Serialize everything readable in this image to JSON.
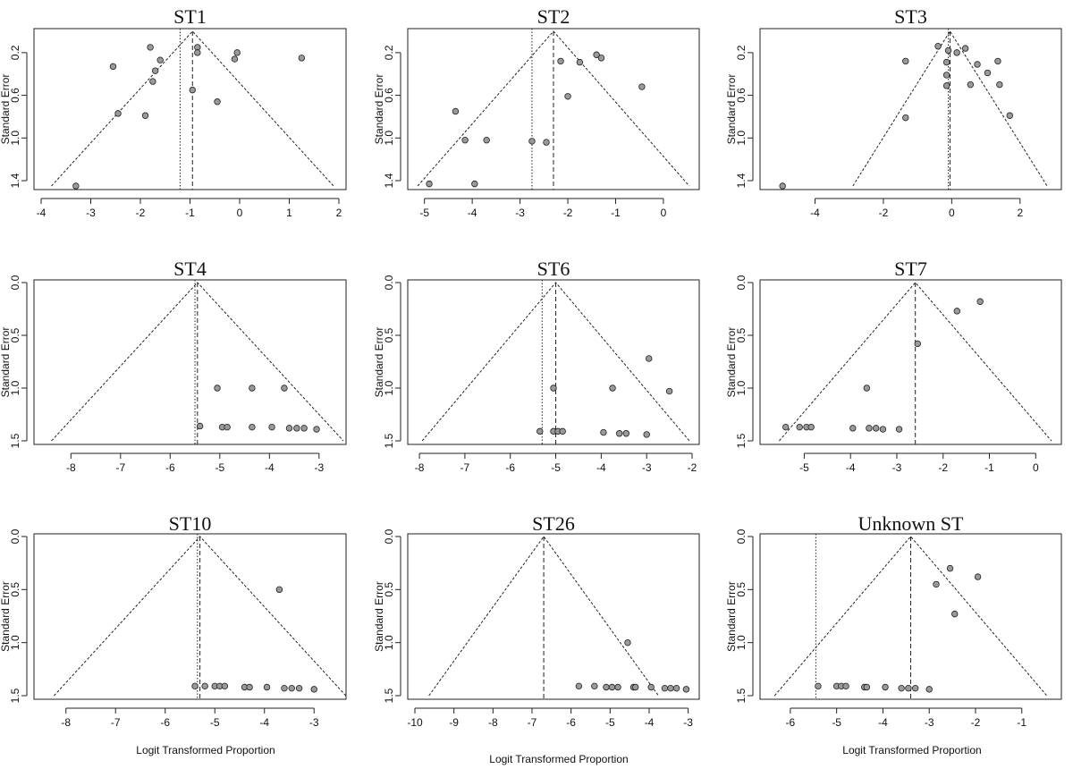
{
  "xlabel": "Logit Transformed Proportion",
  "ylabel": "Standard Error",
  "chart_data": [
    {
      "type": "scatter",
      "title": "ST1",
      "xlabel": "",
      "ylabel": "Standard Error",
      "xlim": [
        -4,
        2
      ],
      "ylim": [
        0.0,
        1.45
      ],
      "y_reversed": true,
      "x_ticks": [
        -4,
        -3,
        -2,
        -1,
        0,
        1,
        2
      ],
      "y_ticks": [
        0.2,
        0.6,
        1.0,
        1.4
      ],
      "y_tick_labels": [
        "0.2",
        "0.6",
        "1.0",
        "1.4"
      ],
      "funnel_center": -0.95,
      "adjusted_estimate": -1.2,
      "points": [
        {
          "x": -1.8,
          "y": 0.15
        },
        {
          "x": -0.85,
          "y": 0.15
        },
        {
          "x": -0.85,
          "y": 0.2
        },
        {
          "x": -0.05,
          "y": 0.2
        },
        {
          "x": -0.1,
          "y": 0.26
        },
        {
          "x": 1.25,
          "y": 0.25
        },
        {
          "x": -1.6,
          "y": 0.27
        },
        {
          "x": -2.55,
          "y": 0.33
        },
        {
          "x": -1.7,
          "y": 0.37
        },
        {
          "x": -1.75,
          "y": 0.47
        },
        {
          "x": -0.95,
          "y": 0.55
        },
        {
          "x": -0.45,
          "y": 0.66
        },
        {
          "x": -2.45,
          "y": 0.77
        },
        {
          "x": -1.9,
          "y": 0.79
        },
        {
          "x": -3.3,
          "y": 1.45
        }
      ]
    },
    {
      "type": "scatter",
      "title": "ST2",
      "xlabel": "",
      "ylabel": "Standard Error",
      "xlim": [
        -5.2,
        0.6
      ],
      "ylim": [
        0.0,
        1.45
      ],
      "y_reversed": true,
      "x_ticks": [
        -5,
        -4,
        -3,
        -2,
        -1,
        0
      ],
      "y_ticks": [
        0.2,
        0.6,
        1.0,
        1.4
      ],
      "y_tick_labels": [
        "0.2",
        "0.6",
        "1.0",
        "1.4"
      ],
      "funnel_center": -2.3,
      "adjusted_estimate": -2.75,
      "points": [
        {
          "x": -1.4,
          "y": 0.22
        },
        {
          "x": -1.3,
          "y": 0.25
        },
        {
          "x": -2.15,
          "y": 0.28
        },
        {
          "x": -1.75,
          "y": 0.29
        },
        {
          "x": -0.45,
          "y": 0.52
        },
        {
          "x": -2.0,
          "y": 0.61
        },
        {
          "x": -4.35,
          "y": 0.75
        },
        {
          "x": -3.7,
          "y": 1.02
        },
        {
          "x": -4.15,
          "y": 1.02
        },
        {
          "x": -2.75,
          "y": 1.03
        },
        {
          "x": -2.45,
          "y": 1.04
        },
        {
          "x": -4.9,
          "y": 1.43
        },
        {
          "x": -3.95,
          "y": 1.43
        }
      ]
    },
    {
      "type": "scatter",
      "title": "ST3",
      "xlabel": "",
      "ylabel": "Standard Error",
      "xlim": [
        -5.4,
        3.0
      ],
      "ylim": [
        0.0,
        1.45
      ],
      "y_reversed": true,
      "x_ticks": [
        -4,
        -2,
        0,
        2
      ],
      "y_ticks": [
        0.2,
        0.6,
        1.0,
        1.4
      ],
      "y_tick_labels": [
        "0.2",
        "0.6",
        "1.0",
        "1.4"
      ],
      "funnel_center": -0.05,
      "adjusted_estimate": -0.1,
      "points": [
        {
          "x": -0.4,
          "y": 0.14
        },
        {
          "x": 0.4,
          "y": 0.16
        },
        {
          "x": -0.1,
          "y": 0.18
        },
        {
          "x": 0.15,
          "y": 0.2
        },
        {
          "x": -1.35,
          "y": 0.28
        },
        {
          "x": -0.15,
          "y": 0.29
        },
        {
          "x": 0.75,
          "y": 0.31
        },
        {
          "x": 1.35,
          "y": 0.28
        },
        {
          "x": -0.15,
          "y": 0.41
        },
        {
          "x": 1.05,
          "y": 0.39
        },
        {
          "x": -0.15,
          "y": 0.51
        },
        {
          "x": 0.55,
          "y": 0.5
        },
        {
          "x": 1.4,
          "y": 0.5
        },
        {
          "x": -1.35,
          "y": 0.81
        },
        {
          "x": 1.7,
          "y": 0.79
        },
        {
          "x": -4.95,
          "y": 1.45
        }
      ]
    },
    {
      "type": "scatter",
      "title": "ST4",
      "xlabel": "",
      "ylabel": "Standard Error",
      "xlim": [
        -8.6,
        -2.6
      ],
      "ylim": [
        0.0,
        1.5
      ],
      "y_reversed": true,
      "x_ticks": [
        -8,
        -7,
        -6,
        -5,
        -4,
        -3
      ],
      "y_ticks": [
        0.0,
        0.5,
        1.0,
        1.5
      ],
      "y_tick_labels": [
        "0.0",
        "0.5",
        "1.0",
        "1.5"
      ],
      "funnel_center": -5.45,
      "adjusted_estimate": -5.5,
      "points": [
        {
          "x": -5.05,
          "y": 1.0
        },
        {
          "x": -4.35,
          "y": 1.0
        },
        {
          "x": -3.7,
          "y": 1.0
        },
        {
          "x": -5.4,
          "y": 1.36
        },
        {
          "x": -4.95,
          "y": 1.37
        },
        {
          "x": -4.85,
          "y": 1.37
        },
        {
          "x": -4.35,
          "y": 1.37
        },
        {
          "x": -3.95,
          "y": 1.37
        },
        {
          "x": -3.6,
          "y": 1.38
        },
        {
          "x": -3.45,
          "y": 1.38
        },
        {
          "x": -3.3,
          "y": 1.38
        },
        {
          "x": -3.05,
          "y": 1.39
        }
      ]
    },
    {
      "type": "scatter",
      "title": "ST6",
      "xlabel": "",
      "ylabel": "Standard Error",
      "xlim": [
        -8.1,
        -2.0
      ],
      "ylim": [
        0.0,
        1.5
      ],
      "y_reversed": true,
      "x_ticks": [
        -8,
        -7,
        -6,
        -5,
        -4,
        -3,
        -2
      ],
      "y_ticks": [
        0.0,
        0.5,
        1.0,
        1.5
      ],
      "y_tick_labels": [
        "0.0",
        "0.5",
        "1.0",
        "1.5"
      ],
      "funnel_center": -5.0,
      "adjusted_estimate": -5.3,
      "points": [
        {
          "x": -2.95,
          "y": 0.72
        },
        {
          "x": -5.05,
          "y": 1.0
        },
        {
          "x": -3.75,
          "y": 1.0
        },
        {
          "x": -2.5,
          "y": 1.03
        },
        {
          "x": -5.35,
          "y": 1.41
        },
        {
          "x": -5.05,
          "y": 1.41
        },
        {
          "x": -4.95,
          "y": 1.41
        },
        {
          "x": -4.85,
          "y": 1.41
        },
        {
          "x": -3.95,
          "y": 1.42
        },
        {
          "x": -3.6,
          "y": 1.43
        },
        {
          "x": -3.45,
          "y": 1.43
        },
        {
          "x": -3.0,
          "y": 1.44
        }
      ]
    },
    {
      "type": "scatter",
      "title": "ST7",
      "xlabel": "",
      "ylabel": "Standard Error",
      "xlim": [
        -5.8,
        0.4
      ],
      "ylim": [
        0.0,
        1.5
      ],
      "y_reversed": true,
      "x_ticks": [
        -5,
        -4,
        -3,
        -2,
        -1,
        0
      ],
      "y_ticks": [
        0.0,
        0.5,
        1.0,
        1.5
      ],
      "y_tick_labels": [
        "0.0",
        "0.5",
        "1.0",
        "1.5"
      ],
      "funnel_center": -2.6,
      "adjusted_estimate": -2.6,
      "points": [
        {
          "x": -1.2,
          "y": 0.18
        },
        {
          "x": -1.7,
          "y": 0.27
        },
        {
          "x": -2.55,
          "y": 0.58
        },
        {
          "x": -3.65,
          "y": 1.0
        },
        {
          "x": -5.4,
          "y": 1.37
        },
        {
          "x": -5.1,
          "y": 1.37
        },
        {
          "x": -4.95,
          "y": 1.37
        },
        {
          "x": -4.85,
          "y": 1.37
        },
        {
          "x": -3.95,
          "y": 1.38
        },
        {
          "x": -3.6,
          "y": 1.38
        },
        {
          "x": -3.45,
          "y": 1.38
        },
        {
          "x": -3.3,
          "y": 1.39
        },
        {
          "x": -2.95,
          "y": 1.39
        }
      ]
    },
    {
      "type": "scatter",
      "title": "ST10",
      "xlabel": "",
      "ylabel": "Standard Error",
      "xlim": [
        -8.5,
        -2.5
      ],
      "ylim": [
        0.0,
        1.5
      ],
      "y_reversed": true,
      "x_ticks": [
        -8,
        -7,
        -6,
        -5,
        -4,
        -3
      ],
      "y_ticks": [
        0.0,
        0.5,
        1.0,
        1.5
      ],
      "y_tick_labels": [
        "0.0",
        "0.5",
        "1.0",
        "1.5"
      ],
      "funnel_center": -5.3,
      "adjusted_estimate": -5.35,
      "points": [
        {
          "x": -3.7,
          "y": 0.5
        },
        {
          "x": -5.4,
          "y": 1.41
        },
        {
          "x": -5.2,
          "y": 1.41
        },
        {
          "x": -5.0,
          "y": 1.41
        },
        {
          "x": -4.9,
          "y": 1.41
        },
        {
          "x": -4.8,
          "y": 1.41
        },
        {
          "x": -4.4,
          "y": 1.42
        },
        {
          "x": -4.3,
          "y": 1.42
        },
        {
          "x": -3.95,
          "y": 1.42
        },
        {
          "x": -3.6,
          "y": 1.43
        },
        {
          "x": -3.45,
          "y": 1.43
        },
        {
          "x": -3.3,
          "y": 1.43
        },
        {
          "x": -3.0,
          "y": 1.44
        }
      ]
    },
    {
      "type": "scatter",
      "title": "ST26",
      "xlabel": "",
      "ylabel": "Standard Error",
      "xlim": [
        -10.0,
        -2.9
      ],
      "ylim": [
        0.0,
        1.5
      ],
      "y_reversed": true,
      "x_ticks": [
        -10,
        -9,
        -8,
        -7,
        -6,
        -5,
        -4,
        -3
      ],
      "y_ticks": [
        0.0,
        0.5,
        1.0,
        1.5
      ],
      "y_tick_labels": [
        "0.0",
        "0.5",
        "1.0",
        "1.5"
      ],
      "funnel_center": -6.7,
      "adjusted_estimate": -6.7,
      "points": [
        {
          "x": -4.55,
          "y": 1.0
        },
        {
          "x": -5.8,
          "y": 1.41
        },
        {
          "x": -5.4,
          "y": 1.41
        },
        {
          "x": -5.1,
          "y": 1.42
        },
        {
          "x": -4.95,
          "y": 1.42
        },
        {
          "x": -4.8,
          "y": 1.42
        },
        {
          "x": -4.4,
          "y": 1.42
        },
        {
          "x": -4.35,
          "y": 1.42
        },
        {
          "x": -3.95,
          "y": 1.42
        },
        {
          "x": -3.6,
          "y": 1.43
        },
        {
          "x": -3.45,
          "y": 1.43
        },
        {
          "x": -3.3,
          "y": 1.43
        },
        {
          "x": -3.05,
          "y": 1.44
        }
      ]
    },
    {
      "type": "scatter",
      "title": "Unknown ST",
      "xlabel": "",
      "ylabel": "Standard Error",
      "xlim": [
        -6.5,
        -0.3
      ],
      "ylim": [
        0.0,
        1.5
      ],
      "y_reversed": true,
      "x_ticks": [
        -6,
        -5,
        -4,
        -3,
        -2,
        -1
      ],
      "y_ticks": [
        0.0,
        0.5,
        1.0,
        1.5
      ],
      "y_tick_labels": [
        "0.0",
        "0.5",
        "1.0",
        "1.5"
      ],
      "funnel_center": -3.4,
      "adjusted_estimate": -5.45,
      "points": [
        {
          "x": -2.55,
          "y": 0.3
        },
        {
          "x": -1.95,
          "y": 0.38
        },
        {
          "x": -2.85,
          "y": 0.45
        },
        {
          "x": -2.45,
          "y": 0.73
        },
        {
          "x": -5.4,
          "y": 1.41
        },
        {
          "x": -5.0,
          "y": 1.41
        },
        {
          "x": -4.9,
          "y": 1.41
        },
        {
          "x": -4.8,
          "y": 1.41
        },
        {
          "x": -4.4,
          "y": 1.42
        },
        {
          "x": -4.35,
          "y": 1.42
        },
        {
          "x": -3.95,
          "y": 1.42
        },
        {
          "x": -3.6,
          "y": 1.43
        },
        {
          "x": -3.45,
          "y": 1.43
        },
        {
          "x": -3.3,
          "y": 1.43
        },
        {
          "x": -3.0,
          "y": 1.44
        }
      ]
    }
  ]
}
